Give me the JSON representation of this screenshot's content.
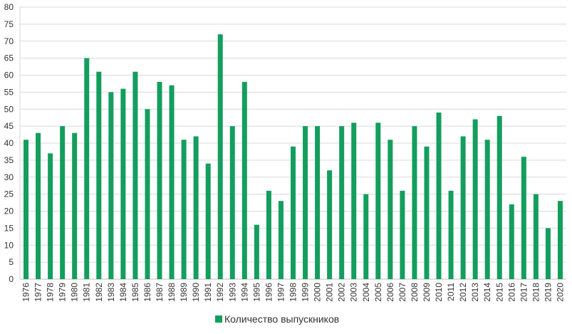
{
  "colors": {
    "bar": "#149e5e",
    "grid": "#d9d9d9",
    "axis": "#bfbfbf",
    "text": "#333333"
  },
  "chart_data": {
    "type": "bar",
    "title": "",
    "xlabel": "",
    "ylabel": "",
    "ylim": [
      0,
      80
    ],
    "y_ticks": [
      0,
      5,
      10,
      15,
      20,
      25,
      30,
      35,
      40,
      45,
      50,
      55,
      60,
      65,
      70,
      75,
      80
    ],
    "grid": true,
    "legend_position": "bottom",
    "categories": [
      "1976",
      "1977",
      "1978",
      "1979",
      "1980",
      "1981",
      "1982",
      "1983",
      "1984",
      "1985",
      "1986",
      "1987",
      "1988",
      "1989",
      "1990",
      "1991",
      "1992",
      "1993",
      "1994",
      "1995",
      "1996",
      "1997",
      "1998",
      "1999",
      "2000",
      "2001",
      "2002",
      "2003",
      "2004",
      "2005",
      "2006",
      "2007",
      "2008",
      "2009",
      "2010",
      "2011",
      "2012",
      "2013",
      "2014",
      "2015",
      "2016",
      "2017",
      "2018",
      "2019",
      "2020"
    ],
    "series": [
      {
        "name": "Количество выпускников",
        "values": [
          41,
          43,
          37,
          45,
          43,
          65,
          61,
          55,
          56,
          61,
          50,
          58,
          57,
          41,
          42,
          34,
          72,
          45,
          58,
          16,
          26,
          23,
          39,
          45,
          45,
          32,
          45,
          46,
          25,
          46,
          41,
          26,
          45,
          39,
          49,
          26,
          42,
          47,
          41,
          48,
          22,
          36,
          25,
          15,
          23
        ]
      }
    ]
  }
}
